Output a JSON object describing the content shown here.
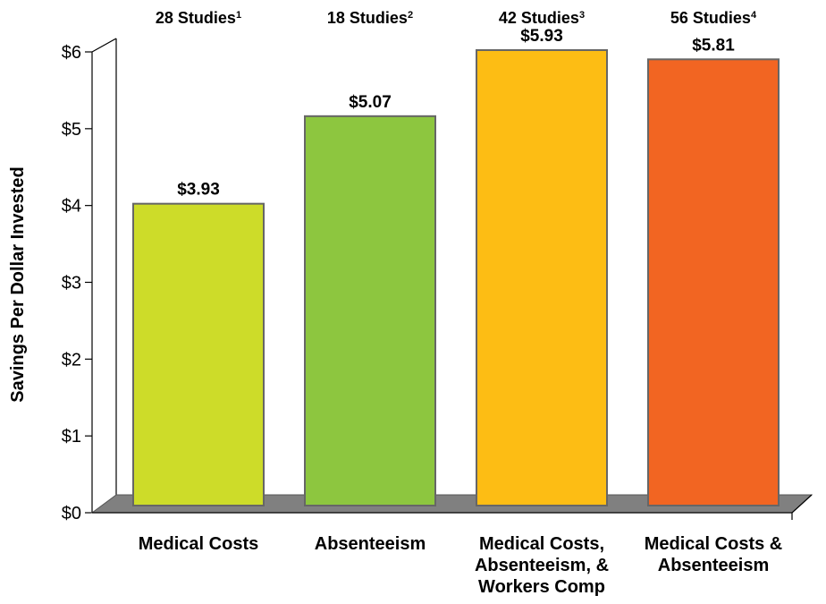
{
  "chart_data": {
    "type": "bar",
    "title": "",
    "xlabel": "",
    "ylabel": "Savings Per Dollar Invested",
    "ylim": [
      0,
      6
    ],
    "y_ticks": [
      "$0",
      "$1",
      "$2",
      "$3",
      "$4",
      "$5",
      "$6"
    ],
    "grid": false,
    "categories": [
      {
        "lines": [
          "Medical Costs"
        ]
      },
      {
        "lines": [
          "Absenteeism"
        ]
      },
      {
        "lines": [
          "Medical Costs,",
          "Absenteeism, &",
          "Workers Comp"
        ]
      },
      {
        "lines": [
          "Medical Costs &",
          "Absenteeism"
        ]
      }
    ],
    "values": [
      3.93,
      5.07,
      5.93,
      5.81
    ],
    "value_labels": [
      "$3.93",
      "$5.07",
      "$5.93",
      "$5.81"
    ],
    "study_labels": [
      {
        "text": "28 Studies",
        "sup": "1"
      },
      {
        "text": "18 Studies",
        "sup": "2"
      },
      {
        "text": "42 Studies",
        "sup": "3"
      },
      {
        "text": "56 Studies",
        "sup": "4"
      }
    ],
    "colors": [
      "#cddc29",
      "#8dc63f",
      "#fdbd14",
      "#f26522"
    ],
    "floor_color": "#808080",
    "bar_outline_color": "#666666"
  }
}
